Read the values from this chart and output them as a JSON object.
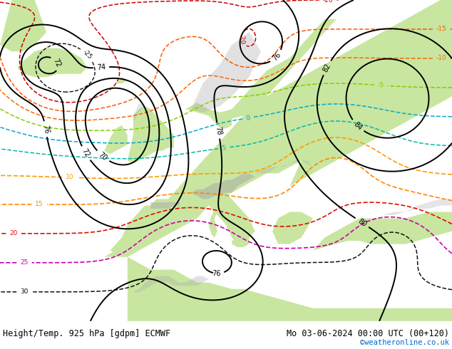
{
  "title_left": "Height/Temp. 925 hPa [gdpm] ECMWF",
  "title_right": "Mo 03-06-2024 00:00 UTC (00+120)",
  "credit": "©weatheronline.co.uk",
  "credit_color": "#0066cc",
  "bg_color": "#ffffff",
  "land_color": "#c8e6a0",
  "sea_color": "#e0e0e0",
  "mountain_color": "#aaaaaa",
  "figsize": [
    6.34,
    4.9
  ],
  "dpi": 100,
  "extent": [
    -28,
    50,
    25,
    75
  ]
}
